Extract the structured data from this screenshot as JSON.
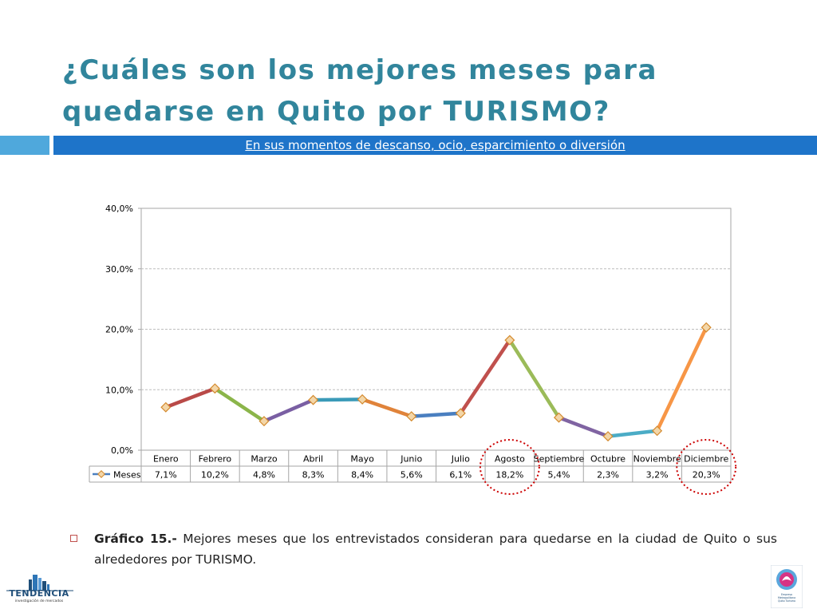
{
  "slide": {
    "title": "¿Cuáles son los mejores meses para quedarse en Quito por TURISMO?",
    "subtitle": "En sus momentos de descanso, ocio, esparcimiento o diversión",
    "caption_label": "Gráfico 15.-",
    "caption_text": " Mejores meses que los entrevistados consideran para quedarse en la ciudad de Quito o sus alrededores por TURISMO.",
    "logo_left_text": "TENDENCIA",
    "logo_left_sub": "investigación de mercados",
    "logo_right_text": "Empresa Metropolitana Quito Turismo"
  },
  "chart_data": {
    "type": "line",
    "categories": [
      "Enero",
      "Febrero",
      "Marzo",
      "Abril",
      "Mayo",
      "Junio",
      "Julio",
      "Agosto",
      "Septiembre",
      "Octubre",
      "Noviembre",
      "Diciembre"
    ],
    "series": [
      {
        "name": "Meses",
        "values": [
          7.1,
          10.2,
          4.8,
          8.3,
          8.4,
          5.6,
          6.1,
          18.2,
          5.4,
          2.3,
          3.2,
          20.3
        ]
      }
    ],
    "value_labels": [
      "7,1%",
      "10,2%",
      "4,8%",
      "8,3%",
      "8,4%",
      "5,6%",
      "6,1%",
      "18,2%",
      "5,4%",
      "2,3%",
      "3,2%",
      "20,3%"
    ],
    "ylim": [
      0,
      40
    ],
    "yticks": [
      0,
      10,
      20,
      30,
      40
    ],
    "ytick_labels": [
      "0,0%",
      "10,0%",
      "20,0%",
      "30,0%",
      "40,0%"
    ],
    "segment_colors": [
      "#b94a48",
      "#8bb54a",
      "#7a5fa3",
      "#3a9ab8",
      "#e0833a",
      "#4a7fc0",
      "#c0504d",
      "#9bbb59",
      "#8064a2",
      "#4bacc6",
      "#f79646"
    ],
    "marker_fill": "#f3d6a8",
    "marker_stroke": "#d48a2e",
    "highlighted": [
      "Agosto",
      "Diciembre"
    ],
    "highlight_color": "#cc0000",
    "grid": true,
    "legend": "data-table"
  }
}
